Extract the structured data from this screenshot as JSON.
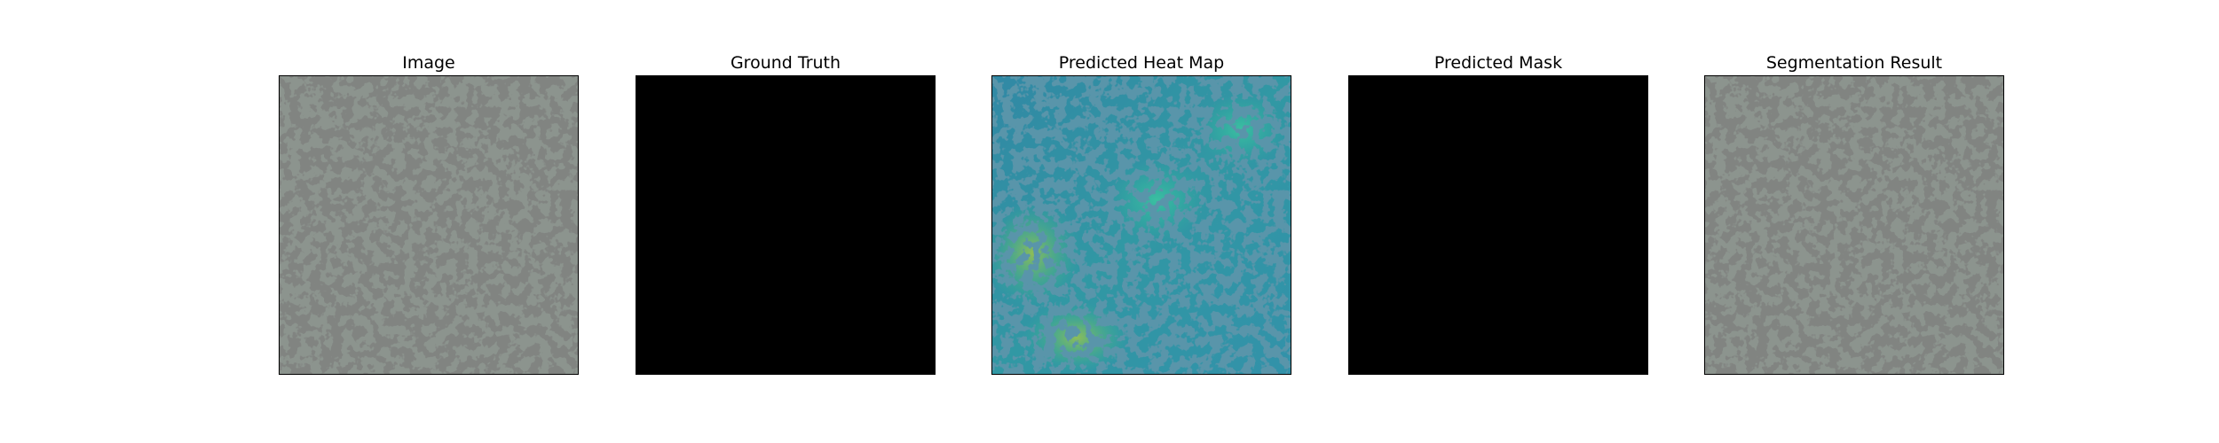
{
  "figure": {
    "panels": [
      {
        "title": "Image",
        "kind": "texture",
        "icon": "granite-texture-image"
      },
      {
        "title": "Ground Truth",
        "kind": "mask",
        "fill": "#000000",
        "icon": "empty-ground-truth-mask"
      },
      {
        "title": "Predicted Heat Map",
        "kind": "heatmap",
        "icon": "anomaly-heatmap-overlay"
      },
      {
        "title": "Predicted Mask",
        "kind": "mask",
        "fill": "#000000",
        "icon": "empty-predicted-mask"
      },
      {
        "title": "Segmentation Result",
        "kind": "texture",
        "icon": "segmentation-result-image"
      }
    ]
  }
}
